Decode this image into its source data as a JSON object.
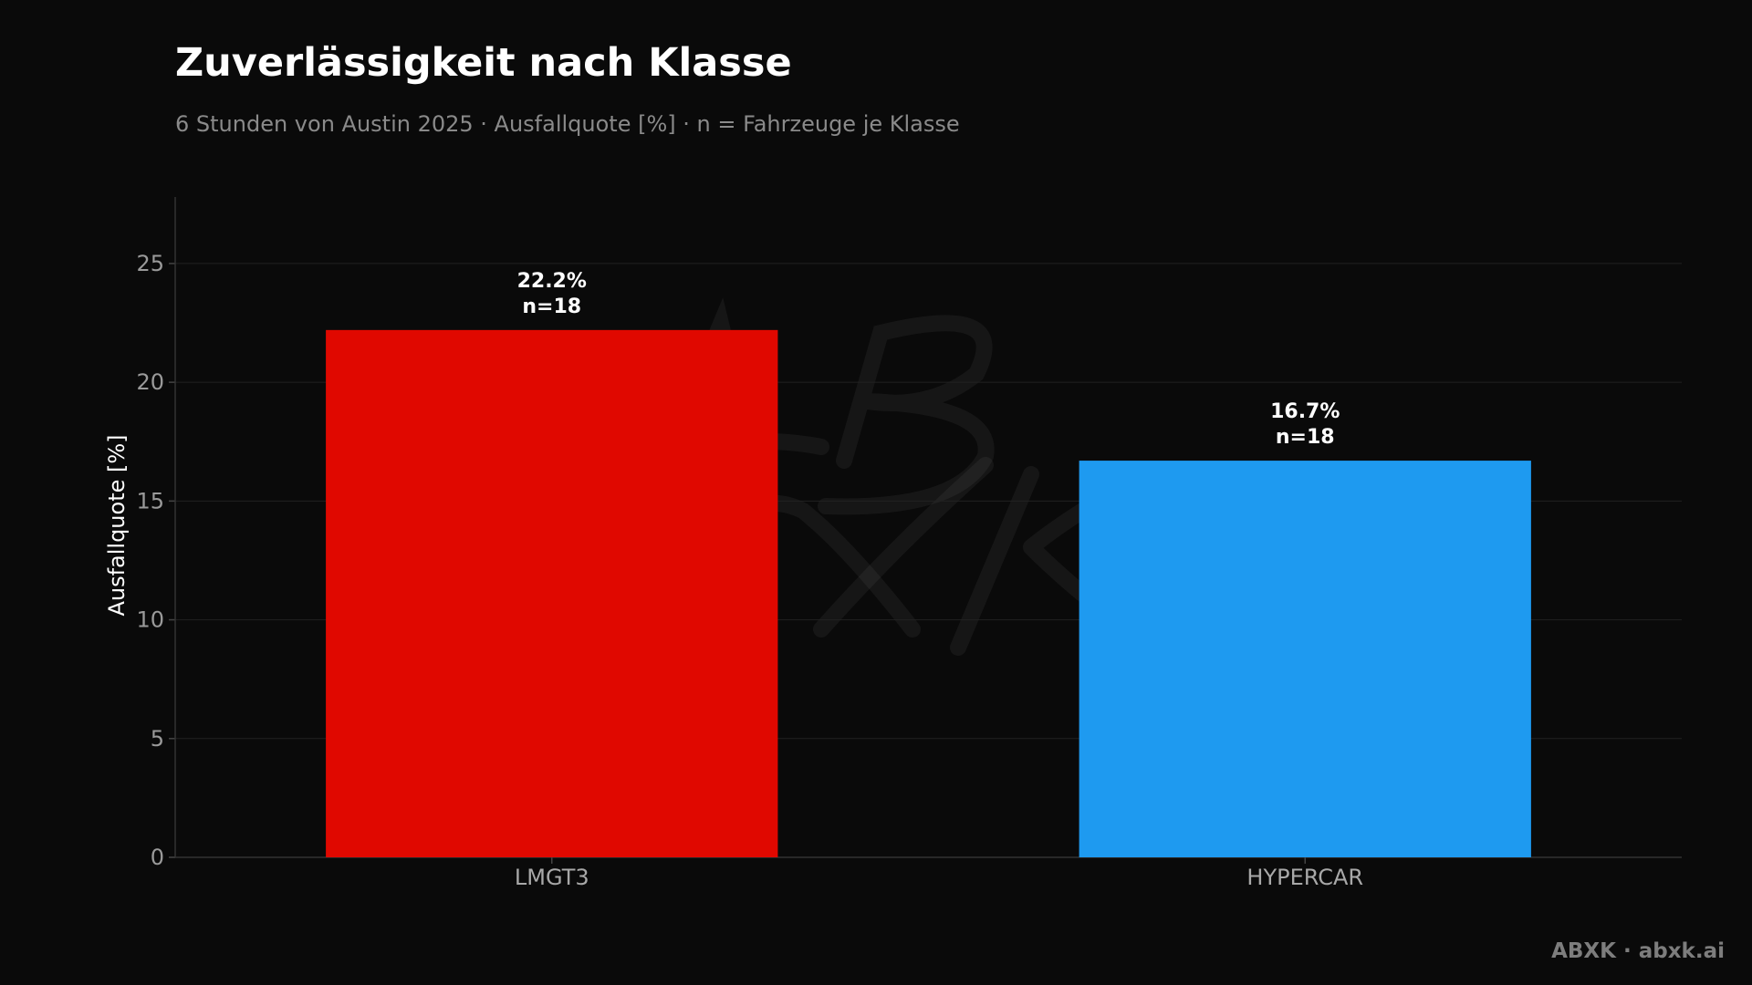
{
  "chart_data": {
    "type": "bar",
    "title": "Zuverlässigkeit nach Klasse",
    "subtitle": "6 Stunden von Austin 2025 · Ausfallquote [%] · n = Fahrzeuge je Klasse",
    "xlabel": "",
    "ylabel": "Ausfallquote [%]",
    "categories": [
      "LMGT3",
      "HYPERCAR"
    ],
    "values": [
      22.2,
      16.7
    ],
    "colors": [
      "#e00800",
      "#1e9af0"
    ],
    "data_labels": [
      {
        "value": "22.2%",
        "n": "n=18"
      },
      {
        "value": "16.7%",
        "n": "n=18"
      }
    ],
    "ylim": [
      0,
      27.8
    ],
    "yticks": [
      0,
      5,
      10,
      15,
      20,
      25
    ],
    "grid": true,
    "legend": "none"
  },
  "watermark": "ABXK",
  "footer": "ABXK · abxk.ai"
}
